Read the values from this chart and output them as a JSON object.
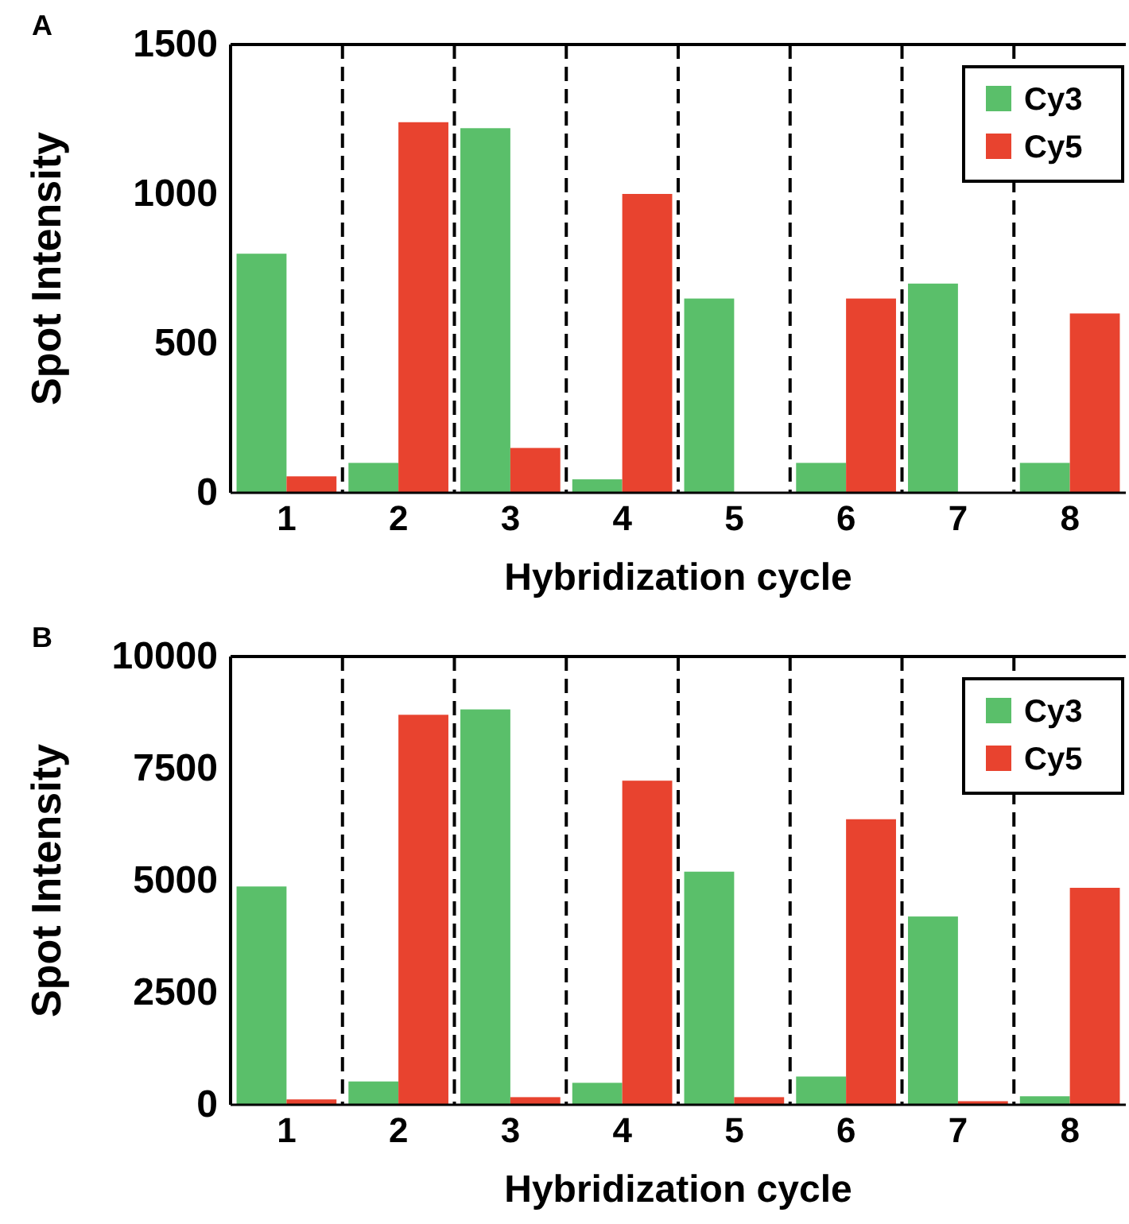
{
  "chart_data": [
    {
      "type": "bar",
      "title": "A",
      "xlabel": "Hybridization cycle",
      "ylabel": "Spot Intensity",
      "categories": [
        "1",
        "2",
        "3",
        "4",
        "5",
        "6",
        "7",
        "8"
      ],
      "series": [
        {
          "name": "Cy3",
          "color": "#5abf6a",
          "values": [
            800,
            100,
            1220,
            45,
            650,
            100,
            700,
            100
          ]
        },
        {
          "name": "Cy5",
          "color": "#e8432f",
          "values": [
            55,
            1240,
            150,
            1000,
            0,
            650,
            0,
            600
          ]
        }
      ],
      "ylim": [
        0,
        1500
      ],
      "yticks": [
        0,
        500,
        1000,
        1500
      ],
      "grid": "x",
      "legend": "top right"
    },
    {
      "type": "bar",
      "title": "B",
      "xlabel": "Hybridization cycle",
      "ylabel": "Spot Intensity",
      "categories": [
        "1",
        "2",
        "3",
        "4",
        "5",
        "6",
        "7",
        "8"
      ],
      "series": [
        {
          "name": "Cy3",
          "color": "#5abf6a",
          "values": [
            4870,
            520,
            8820,
            490,
            5200,
            630,
            4200,
            190
          ]
        },
        {
          "name": "Cy5",
          "color": "#e8432f",
          "values": [
            120,
            8700,
            170,
            7230,
            170,
            6370,
            80,
            4840
          ]
        }
      ],
      "ylim": [
        0,
        10000
      ],
      "yticks": [
        0,
        2500,
        5000,
        7500,
        10000
      ],
      "grid": "x",
      "legend": "top right"
    }
  ]
}
